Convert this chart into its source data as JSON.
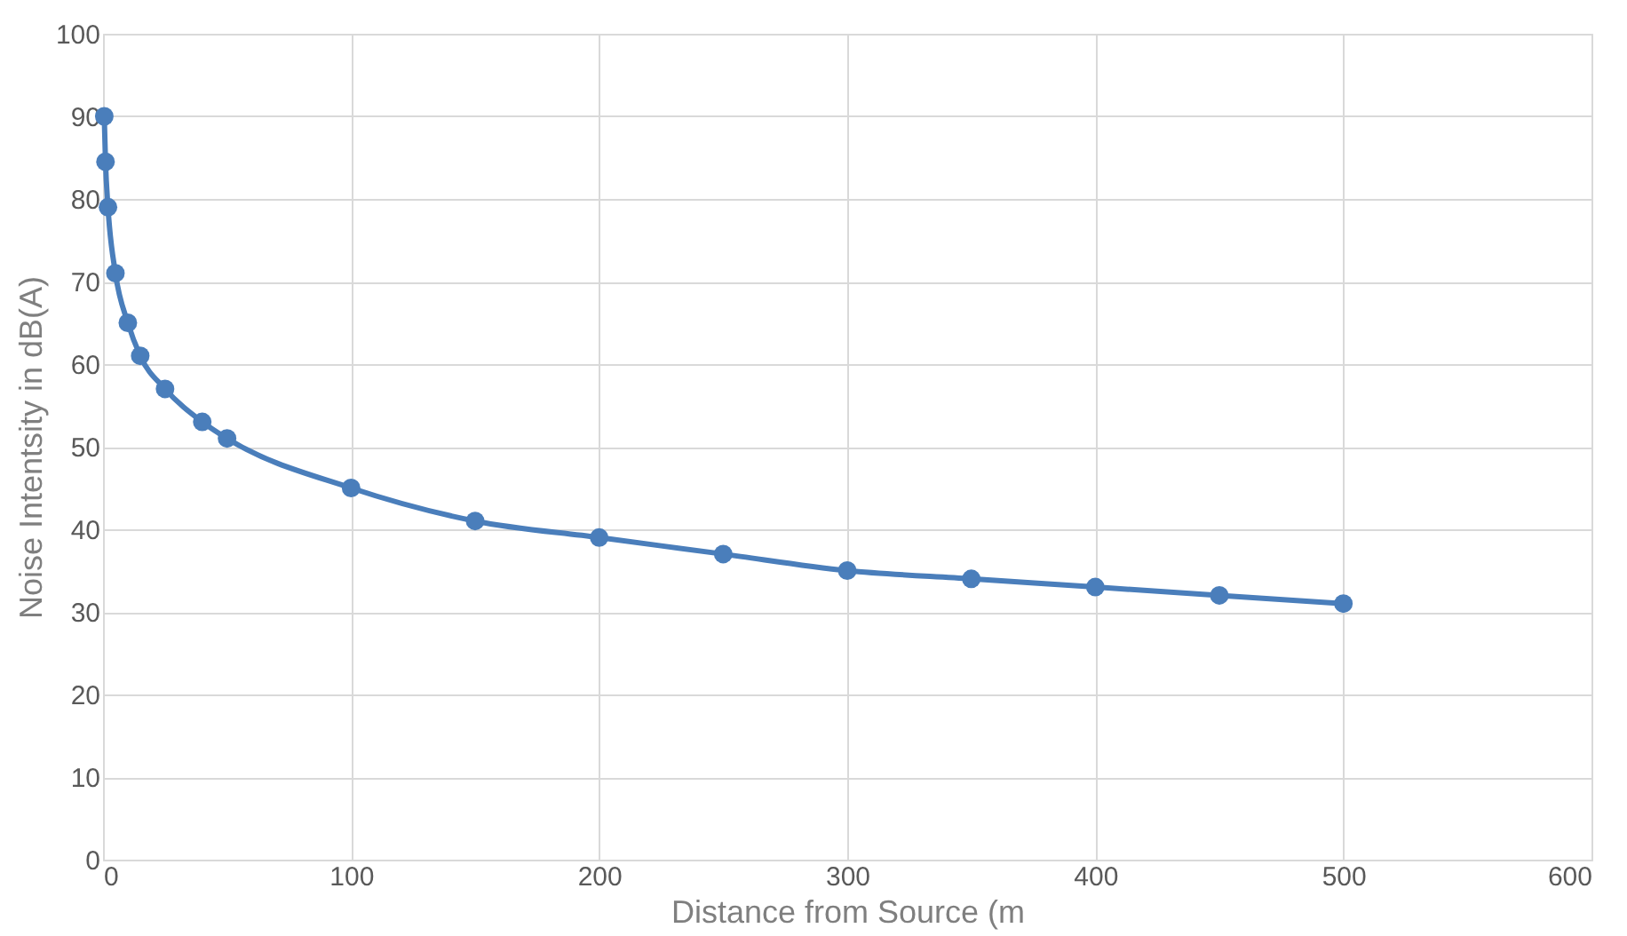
{
  "chart_data": {
    "type": "line",
    "xlabel": "Distance from Source (m",
    "ylabel": "Noise Intentsity in dB(A)",
    "x": [
      0.5,
      1,
      2,
      5,
      10,
      15,
      25,
      40,
      50,
      100,
      150,
      200,
      250,
      300,
      350,
      400,
      450,
      500
    ],
    "series": [
      {
        "color": "#4a7ebb",
        "values": [
          90,
          84.5,
          79,
          71,
          65,
          61,
          57,
          53,
          51,
          45,
          41,
          39,
          37,
          35,
          34,
          33,
          32,
          31
        ]
      }
    ],
    "xlim": [
      0,
      600
    ],
    "xticks": [
      0,
      100,
      200,
      300,
      400,
      500,
      600
    ],
    "ylim": [
      0,
      100
    ],
    "yticks": [
      0,
      10,
      20,
      30,
      40,
      50,
      60,
      70,
      80,
      90,
      100
    ],
    "grid": true,
    "marker": "circle",
    "line_style": "solid"
  }
}
